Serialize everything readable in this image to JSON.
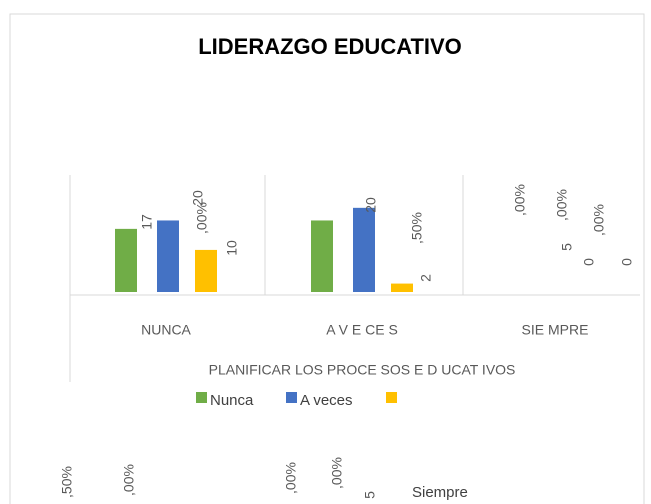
{
  "chart_data": {
    "type": "bar",
    "title": "LIDERAZGO EDUCATIVO",
    "x_label": "PLANIFICAR LOS PROCE SOS E D UCAT IVOS",
    "categories": [
      "NUNCA",
      "A V E CE S",
      "SIE MPRE"
    ],
    "series": [
      {
        "name": "Nunca",
        "color": "#70ad47",
        "values": [
          15,
          17,
          0
        ]
      },
      {
        "name": "A veces",
        "color": "#4472c4",
        "values": [
          17,
          20,
          0
        ]
      },
      {
        "name": "Siempre",
        "color": "#ffc000",
        "values": [
          10,
          2,
          0
        ]
      }
    ],
    "ylim": [
      0,
      24
    ],
    "annotations": [
      "20",
      ",00%",
      ",50%",
      ",00%",
      "5",
      ",00%",
      "0",
      ",00%",
      ",50%",
      ",00%",
      ",00%",
      ",00%",
      "5"
    ]
  }
}
